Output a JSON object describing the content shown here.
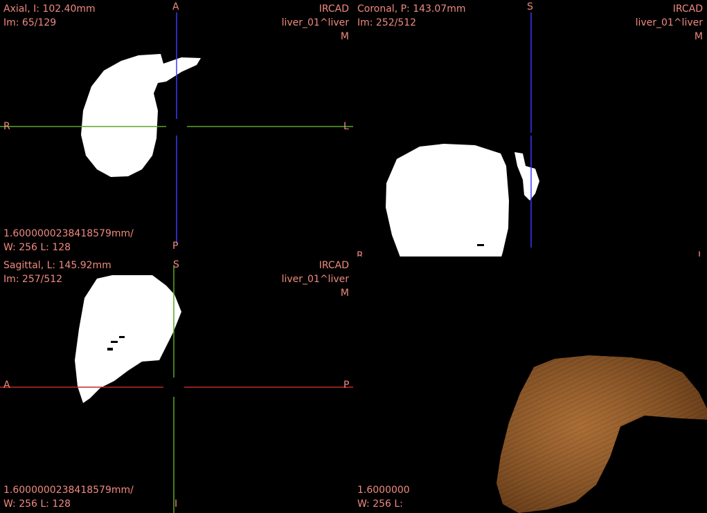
{
  "colors": {
    "overlay_text": "#f08a80",
    "crosshair_blue": "#3a3aff",
    "crosshair_green": "#5aa628",
    "crosshair_red": "#c02828",
    "mask": "#ffffff",
    "liver_3d": "#9a5f2c"
  },
  "axial": {
    "title": "Axial, I: 102.40mm",
    "image_index": "Im: 65/129",
    "institution": "IRCAD",
    "patient": "liver_01^liver",
    "sex": "M",
    "spacing": "1.6000000238418579mm/",
    "window": "W: 256 L: 128",
    "orient_top": "A",
    "orient_left": "R",
    "orient_right": "L",
    "orient_bottom": "P"
  },
  "coronal": {
    "title": "Coronal, P: 143.07mm",
    "image_index": "Im: 252/512",
    "institution": "IRCAD",
    "patient": "liver_01^liver",
    "sex": "M",
    "orient_top": "S",
    "orient_left": "R",
    "orient_right": "L"
  },
  "sagittal": {
    "title": "Sagittal, L: 145.92mm",
    "image_index": "Im: 257/512",
    "institution": "IRCAD",
    "patient": "liver_01^liver",
    "sex": "M",
    "spacing": "1.6000000238418579mm/",
    "window": "W: 256 L: 128",
    "orient_top": "S",
    "orient_left": "A",
    "orient_right": "P",
    "orient_bottom": "I"
  },
  "render3d": {
    "spacing_partial": "1.6000000",
    "window_partial": "W: 256 L: "
  }
}
